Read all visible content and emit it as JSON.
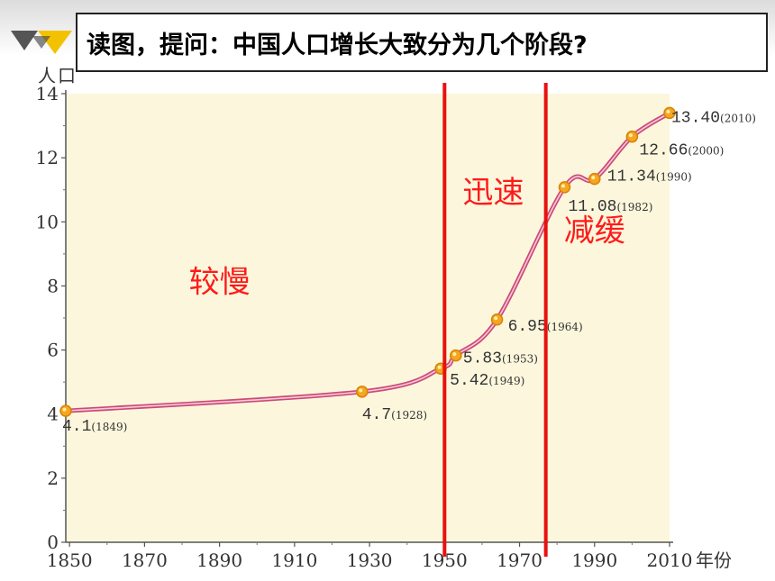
{
  "slide": {
    "title": "读图，提问：中国人口增长大致分为几个阶段?",
    "y_axis_label": "人口",
    "x_axis_unit": "年份"
  },
  "colors": {
    "plot_bg": "#fcf7dc",
    "line": "#cc4a78",
    "marker": "#f5a623",
    "divider": "#e8110f",
    "stage_text": "#ff1a1a"
  },
  "chart_data": {
    "type": "line",
    "x": [
      1849,
      1928,
      1949,
      1953,
      1964,
      1982,
      1990,
      2000,
      2010
    ],
    "series": [
      {
        "values": [
          4.1,
          4.7,
          5.42,
          5.83,
          6.95,
          11.08,
          11.34,
          12.66,
          13.4
        ]
      }
    ],
    "point_labels": [
      {
        "value": "4.1",
        "year": "(1849)"
      },
      {
        "value": "4.7",
        "year": "(1928)"
      },
      {
        "value": "5.42",
        "year": "(1949)"
      },
      {
        "value": "5.83",
        "year": "(1953)"
      },
      {
        "value": "6.95",
        "year": "(1964)"
      },
      {
        "value": "11.08",
        "year": "(1982)"
      },
      {
        "value": "11.34",
        "year": "(1990)"
      },
      {
        "value": "12.66",
        "year": "(2000)"
      },
      {
        "value": "13.40",
        "year": "(2010)"
      }
    ],
    "xlim": [
      1849,
      2010
    ],
    "ylim": [
      0,
      14
    ],
    "x_ticks": [
      1850,
      1870,
      1890,
      1910,
      1930,
      1950,
      1970,
      1990,
      2010
    ],
    "y_ticks": [
      0,
      2,
      4,
      6,
      8,
      10,
      12,
      14
    ],
    "dividers": [
      1950,
      1977
    ],
    "stages": [
      {
        "label": "较慢",
        "x": 1890,
        "y": 7.8
      },
      {
        "label": "迅速",
        "x": 1963,
        "y": 10.6
      },
      {
        "label": "减缓",
        "x": 1990,
        "y": 9.4
      }
    ],
    "grid": false,
    "legend": "none"
  }
}
